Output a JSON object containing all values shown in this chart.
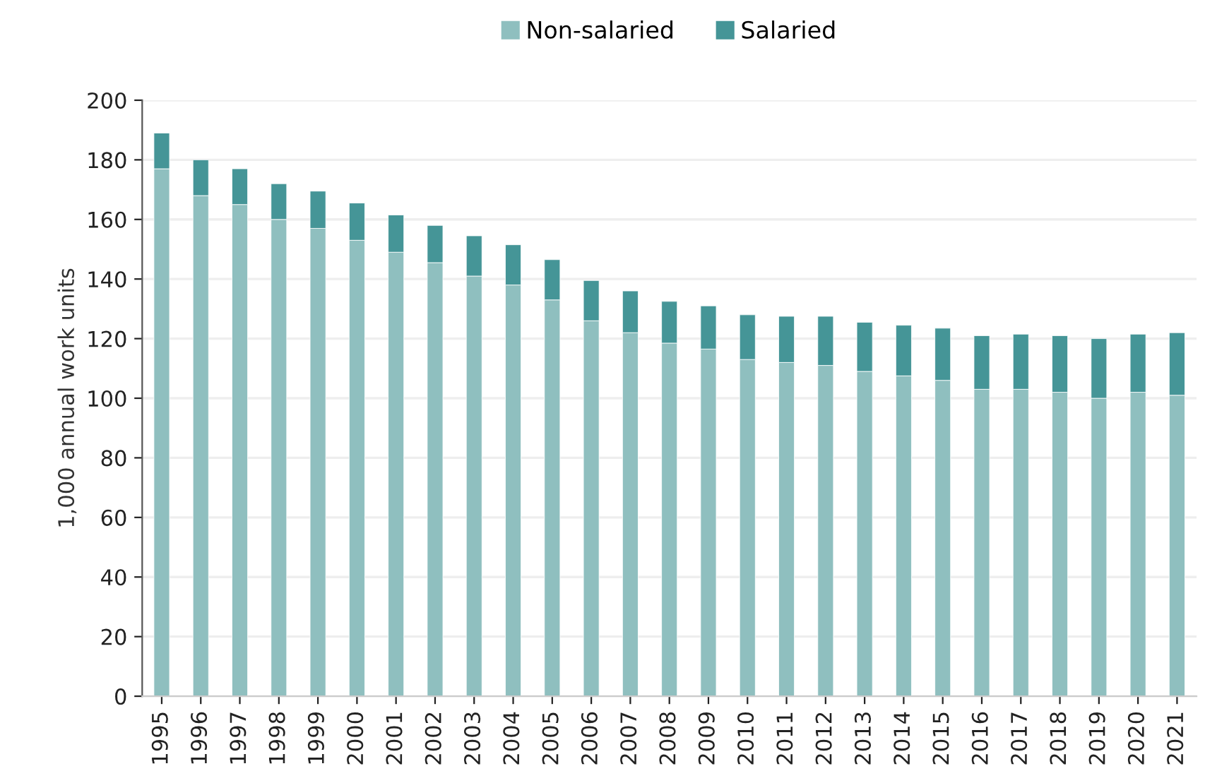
{
  "chart_data": {
    "type": "bar",
    "stacked": true,
    "ylabel": "1,000 annual work units",
    "categories": [
      "1995",
      "1996",
      "1997",
      "1998",
      "1999",
      "2000",
      "2001",
      "2002",
      "2003",
      "2004",
      "2005",
      "2006",
      "2007",
      "2008",
      "2009",
      "2010",
      "2011",
      "2012",
      "2013",
      "2014",
      "2015",
      "2016",
      "2017",
      "2018",
      "2019",
      "2020",
      "2021"
    ],
    "series": [
      {
        "name": "Non-salaried",
        "color": "#8fbfbf",
        "values": [
          177,
          168,
          165,
          160,
          157,
          153,
          149,
          145.5,
          141,
          138,
          133,
          126,
          122,
          118.5,
          116.5,
          113,
          112,
          111,
          109,
          107.5,
          106,
          103,
          103,
          102,
          100,
          102,
          101
        ]
      },
      {
        "name": "Salaried",
        "color": "#459597",
        "values": [
          12,
          12,
          12,
          12,
          12.5,
          12.5,
          12.5,
          12.5,
          13.5,
          13.5,
          13.5,
          13.5,
          14,
          14,
          14.5,
          15,
          15.5,
          16.5,
          16.5,
          17,
          17.5,
          18,
          18.5,
          19,
          20,
          19.5,
          21
        ]
      }
    ],
    "ylim": [
      0,
      200
    ],
    "yticks": [
      0,
      20,
      40,
      60,
      80,
      100,
      120,
      140,
      160,
      180,
      200
    ],
    "grid": "y",
    "legend": "top"
  }
}
